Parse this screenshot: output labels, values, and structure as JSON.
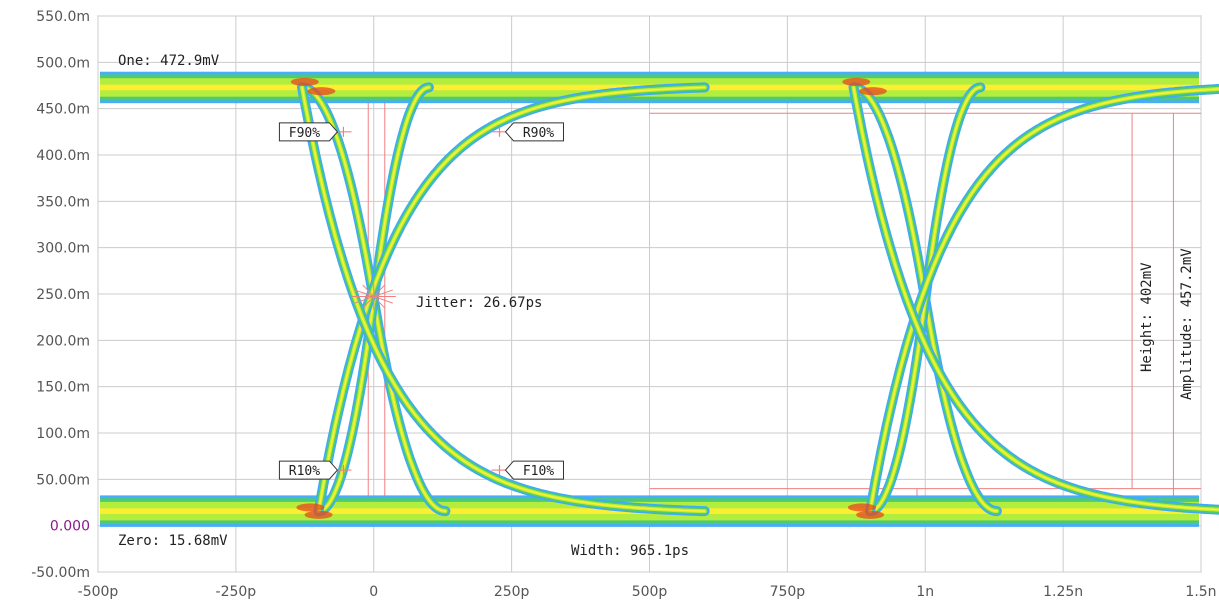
{
  "chart_data": {
    "type": "eye-diagram",
    "title": "",
    "xlabel": "",
    "ylabel": "",
    "xlim": [
      -500,
      1500
    ],
    "xunit": "ps",
    "ylim": [
      -50,
      550
    ],
    "yunit": "mV",
    "grid": true,
    "y_ticks": [
      {
        "value": 550,
        "label": "550.0m"
      },
      {
        "value": 500,
        "label": "500.0m"
      },
      {
        "value": 450,
        "label": "450.0m"
      },
      {
        "value": 400,
        "label": "400.0m"
      },
      {
        "value": 350,
        "label": "350.0m"
      },
      {
        "value": 300,
        "label": "300.0m"
      },
      {
        "value": 250,
        "label": "250.0m"
      },
      {
        "value": 200,
        "label": "200.0m"
      },
      {
        "value": 150,
        "label": "150.0m"
      },
      {
        "value": 100,
        "label": "100.0m"
      },
      {
        "value": 50,
        "label": "50.00m"
      },
      {
        "value": 0,
        "label": "0.000"
      },
      {
        "value": -50,
        "label": "-50.00m"
      }
    ],
    "x_ticks": [
      {
        "value": -500,
        "label": "-500p"
      },
      {
        "value": -250,
        "label": "-250p"
      },
      {
        "value": 0,
        "label": "0"
      },
      {
        "value": 250,
        "label": "250p"
      },
      {
        "value": 500,
        "label": "500p"
      },
      {
        "value": 750,
        "label": "750p"
      },
      {
        "value": 1000,
        "label": "1n"
      },
      {
        "value": 1250,
        "label": "1.25n"
      },
      {
        "value": 1500,
        "label": "1.5n"
      }
    ],
    "levels": {
      "one_mv": 472.9,
      "zero_mv": 15.68,
      "band_halfwidth_mv": 14
    },
    "crossings_ps": [
      0,
      1000
    ],
    "transition": {
      "fall_start_ps": -130,
      "fall_end_ps": -100,
      "rise_ps": -100,
      "t10_offset_ps": 225
    },
    "measurements": {
      "one": "One: 472.9mV",
      "zero": "Zero: 15.68mV",
      "jitter": "Jitter: 26.67ps",
      "width": "Width: 965.1ps",
      "height": "Height: 402mV",
      "amplitude": "Amplitude: 457.2mV"
    },
    "markers": [
      {
        "label": "F90%",
        "x": -55,
        "y": 425,
        "side": "left"
      },
      {
        "label": "R90%",
        "x": 228,
        "y": 425,
        "side": "right"
      },
      {
        "label": "R10%",
        "x": -55,
        "y": 60,
        "side": "left"
      },
      {
        "label": "F10%",
        "x": 228,
        "y": 60,
        "side": "right"
      }
    ],
    "colors": {
      "grid": "#cccccc",
      "measure_lines": "#f08080",
      "outer": "#40a8ff",
      "mid": "#4ccc6a",
      "inner": "#b8ee3a",
      "core": "#ffee33",
      "hot": "#e8451f",
      "zero_label": "#8b1a8b"
    }
  }
}
